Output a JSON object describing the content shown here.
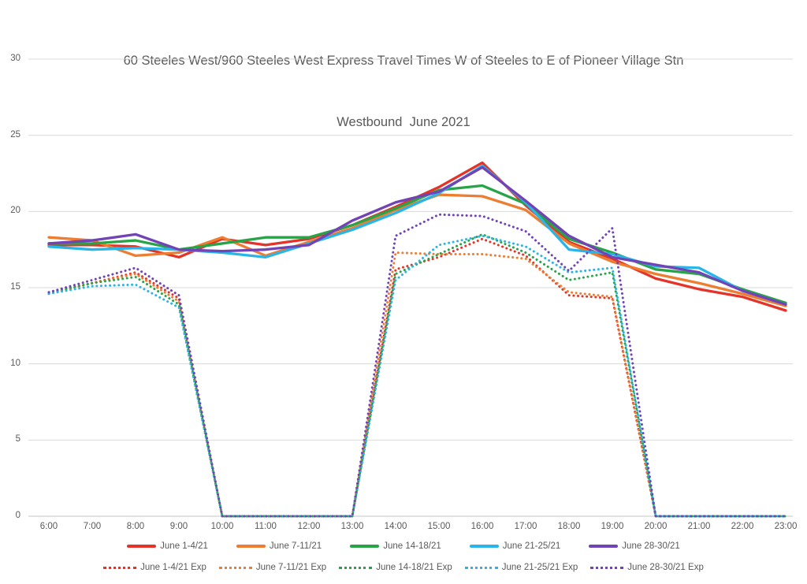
{
  "title": {
    "line1": "60 Steeles West/960 Steeles West Express Travel Times W of Steeles to E of Pioneer Village Stn",
    "line2": "Westbound  June 2021"
  },
  "chart_data": {
    "type": "line",
    "x": [
      "6:00",
      "7:00",
      "8:00",
      "9:00",
      "10:00",
      "11:00",
      "12:00",
      "13:00",
      "14:00",
      "15:00",
      "16:00",
      "17:00",
      "18:00",
      "19:00",
      "20:00",
      "21:00",
      "22:00",
      "23:00"
    ],
    "xlabel": "",
    "ylabel": "",
    "ylim": [
      0,
      30
    ],
    "yticks": [
      0,
      5,
      10,
      15,
      20,
      25,
      30
    ],
    "grid": true,
    "legend_position": "bottom",
    "series": [
      {
        "name": "June 1-4/21",
        "color": "#e43328",
        "style": "solid",
        "values": [
          17.8,
          17.8,
          17.7,
          17.0,
          18.2,
          17.8,
          18.2,
          19.1,
          20.3,
          21.6,
          23.2,
          20.4,
          18.0,
          16.9,
          15.6,
          14.9,
          14.4,
          13.5
        ]
      },
      {
        "name": "June 7-11/21",
        "color": "#ed7d31",
        "style": "solid",
        "values": [
          18.3,
          18.1,
          17.1,
          17.3,
          18.3,
          17.1,
          18.0,
          18.9,
          20.1,
          21.1,
          21.0,
          20.1,
          17.9,
          16.7,
          15.9,
          15.3,
          14.6,
          13.8
        ]
      },
      {
        "name": "June 14-18/21",
        "color": "#27a348",
        "style": "solid",
        "values": [
          17.9,
          17.9,
          18.1,
          17.5,
          17.9,
          18.3,
          18.3,
          19.1,
          20.2,
          21.4,
          21.7,
          20.5,
          18.2,
          17.3,
          16.2,
          15.9,
          14.9,
          14.0
        ]
      },
      {
        "name": "June 21-25/21",
        "color": "#29b5e8",
        "style": "solid",
        "values": [
          17.7,
          17.5,
          17.6,
          17.5,
          17.3,
          17.0,
          17.9,
          18.8,
          19.9,
          21.2,
          23.0,
          20.6,
          17.5,
          17.2,
          16.4,
          16.3,
          14.8,
          13.9
        ]
      },
      {
        "name": "June 28-30/21",
        "color": "#7243b6",
        "style": "solid",
        "values": [
          17.9,
          18.1,
          18.5,
          17.5,
          17.4,
          17.5,
          17.8,
          19.4,
          20.6,
          21.3,
          22.9,
          20.7,
          18.4,
          17.0,
          16.5,
          16.0,
          14.8,
          13.9
        ]
      },
      {
        "name": "June 1-4/21 Exp",
        "color": "#e43328",
        "style": "dotted",
        "values": [
          14.6,
          15.3,
          16.0,
          14.3,
          0,
          0,
          0,
          0,
          16.2,
          17.0,
          18.2,
          17.1,
          14.5,
          14.3,
          0,
          0,
          0,
          0
        ]
      },
      {
        "name": "June 7-11/21 Exp",
        "color": "#ed7d31",
        "style": "dotted",
        "values": [
          14.6,
          15.3,
          15.9,
          14.1,
          0,
          0,
          0,
          0,
          17.3,
          17.2,
          17.2,
          16.9,
          14.7,
          14.4,
          0,
          0,
          0,
          0
        ]
      },
      {
        "name": "June 14-18/21 Exp",
        "color": "#27a348",
        "style": "dotted",
        "values": [
          14.7,
          15.3,
          15.7,
          13.9,
          0,
          0,
          0,
          0,
          15.9,
          17.2,
          18.5,
          17.3,
          15.5,
          16.0,
          0,
          0,
          0,
          0
        ]
      },
      {
        "name": "June 21-25/21 Exp",
        "color": "#29b5e8",
        "style": "dotted",
        "values": [
          14.6,
          15.1,
          15.2,
          13.7,
          0,
          0,
          0,
          0,
          15.5,
          17.8,
          18.4,
          17.7,
          16.0,
          16.3,
          0,
          0,
          0,
          0
        ]
      },
      {
        "name": "June 28-30/21 Exp",
        "color": "#7243b6",
        "style": "dotted",
        "values": [
          14.7,
          15.5,
          16.3,
          14.5,
          0,
          0,
          0,
          0,
          18.4,
          19.8,
          19.7,
          18.7,
          16.1,
          18.9,
          0,
          0,
          0,
          0
        ]
      }
    ]
  },
  "style": {
    "grid_color": "#d9d9d9",
    "axis_color": "#c6c6c6",
    "text_color": "#595959"
  }
}
